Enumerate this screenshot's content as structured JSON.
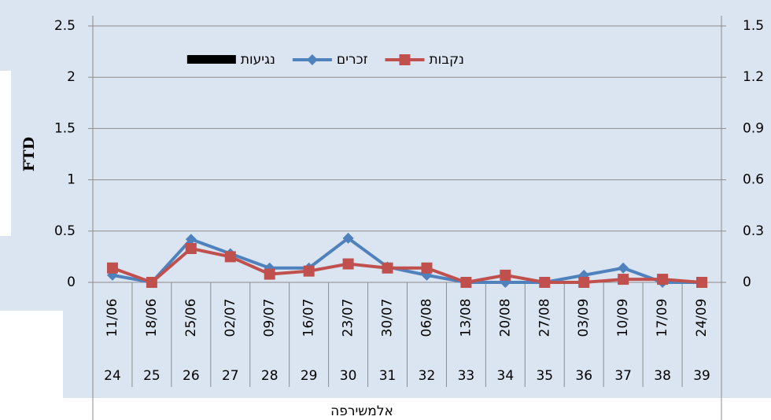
{
  "chart_data": {
    "type": "line",
    "y_label": "FTD",
    "x_label": "אלמשירפה",
    "categories": [
      "11/06",
      "18/06",
      "25/06",
      "02/07",
      "09/07",
      "16/07",
      "23/07",
      "30/07",
      "06/08",
      "13/08",
      "20/08",
      "27/08",
      "03/09",
      "10/09",
      "17/09",
      "24/09"
    ],
    "weeks": [
      "24",
      "25",
      "26",
      "27",
      "28",
      "29",
      "30",
      "31",
      "32",
      "33",
      "34",
      "35",
      "36",
      "37",
      "38",
      "39"
    ],
    "series": [
      {
        "name": "נקבות",
        "color": "#c0504d",
        "type": "line",
        "marker": "square",
        "values": [
          0.14,
          0,
          0.33,
          0.25,
          0.08,
          0.11,
          0.18,
          0.14,
          0.14,
          0,
          0.07,
          0,
          0,
          0.03,
          0.03,
          0
        ]
      },
      {
        "name": "זכרים",
        "color": "#4f81bd",
        "type": "line",
        "marker": "diamond",
        "values": [
          0.07,
          0,
          0.42,
          0.28,
          0.14,
          0.14,
          0.43,
          0.15,
          0.07,
          0,
          0,
          0,
          0.07,
          0.14,
          0,
          0
        ]
      },
      {
        "name": "נגיעות",
        "color": "#000000",
        "type": "bar",
        "axis": "y2",
        "values": [
          null,
          null,
          null,
          null,
          null,
          null,
          null,
          null,
          null,
          null,
          null,
          null,
          null,
          null,
          null,
          null
        ]
      }
    ],
    "ylim": [
      0,
      2.5
    ],
    "yticks": [
      0,
      0.5,
      1,
      1.5,
      2,
      2.5
    ],
    "y2lim": [
      0,
      1.5
    ],
    "y2ticks": [
      0,
      0.3,
      0.6,
      0.9,
      1.2,
      1.5
    ],
    "grid": true,
    "legend": "top-left"
  }
}
